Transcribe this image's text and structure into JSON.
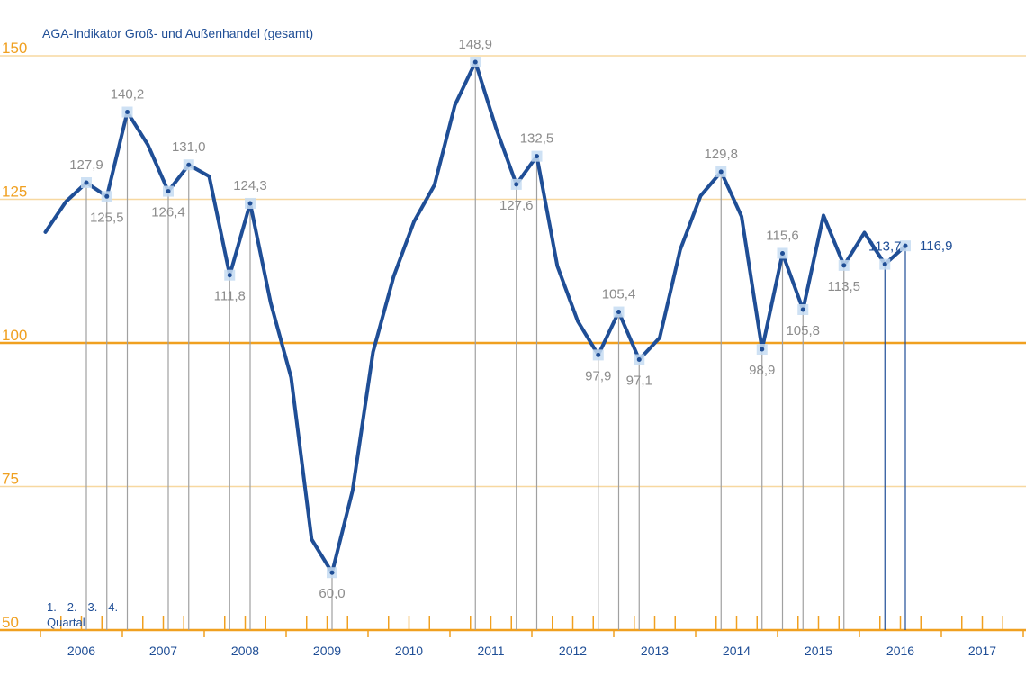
{
  "chart_data": {
    "type": "line",
    "title": "AGA-Indikator Groß- und Außenhandel (gesamt)",
    "xlabel": "",
    "ylabel": "",
    "ylim": [
      50,
      150
    ],
    "y_ticks": [
      50,
      75,
      100,
      125,
      150
    ],
    "y_tick_labels": [
      "50",
      "75",
      "100",
      "125",
      "150"
    ],
    "year_labels": [
      "2006",
      "2007",
      "2008",
      "2009",
      "2010",
      "2011",
      "2012",
      "2013",
      "2014",
      "2015",
      "2016",
      "2017"
    ],
    "quarter_labels": [
      "1.",
      "2.",
      "3.",
      "4."
    ],
    "quarter_caption": "Quartal",
    "reference_line": 100,
    "grid": true,
    "colors": {
      "line": "#1f4e96",
      "axis": "#f0a020",
      "grid": "#f7d8a0",
      "drop": "#a0a0a0",
      "marker": "#c6dcf2",
      "label": "#8c8c8c",
      "highlight": "#1f4e96"
    },
    "series": [
      {
        "x": [
          "2006 Q1",
          "2006 Q2",
          "2006 Q3",
          "2006 Q4",
          "2007 Q1",
          "2007 Q2",
          "2007 Q3",
          "2007 Q4",
          "2008 Q1",
          "2008 Q2",
          "2008 Q3",
          "2008 Q4",
          "2009 Q1",
          "2009 Q2",
          "2009 Q3",
          "2009 Q4",
          "2010 Q1",
          "2010 Q2",
          "2010 Q3",
          "2010 Q4",
          "2011 Q1",
          "2011 Q2",
          "2011 Q3",
          "2011 Q4",
          "2012 Q1",
          "2012 Q2",
          "2012 Q3",
          "2012 Q4",
          "2013 Q1",
          "2013 Q2",
          "2013 Q3",
          "2013 Q4",
          "2014 Q1",
          "2014 Q2",
          "2014 Q3",
          "2014 Q4",
          "2015 Q1",
          "2015 Q2",
          "2015 Q3",
          "2015 Q4",
          "2016 Q1",
          "2016 Q2",
          "2016 Q3"
        ],
        "values": [
          119.3,
          124.6,
          127.9,
          125.5,
          140.2,
          134.5,
          126.4,
          131.0,
          129.0,
          111.8,
          124.3,
          107.0,
          94.0,
          65.8,
          60.0,
          74.3,
          98.4,
          111.5,
          121.1,
          127.5,
          141.4,
          148.9,
          137.5,
          127.6,
          132.5,
          113.4,
          103.8,
          97.9,
          105.4,
          97.1,
          100.9,
          116.2,
          125.6,
          129.8,
          122.0,
          98.9,
          115.6,
          105.8,
          122.2,
          113.5,
          119.2,
          113.7,
          116.9
        ]
      }
    ],
    "labels": [
      {
        "i": 3,
        "text": "127,9",
        "pos": "above"
      },
      {
        "i": 4,
        "text": "125,5",
        "pos": "below"
      },
      {
        "i": 5,
        "text": "140,2",
        "pos": "above"
      },
      {
        "i": 7,
        "text": "126,4",
        "pos": "below"
      },
      {
        "i": 8,
        "text": "131,0",
        "pos": "above"
      },
      {
        "i": 10,
        "text": "111,8",
        "pos": "below"
      },
      {
        "i": 11,
        "text": "124,3",
        "pos": "above"
      },
      {
        "i": 15,
        "text": "60,0",
        "pos": "below"
      },
      {
        "i": 22,
        "text": "148,9",
        "pos": "above"
      },
      {
        "i": 24,
        "text": "127,6",
        "pos": "below"
      },
      {
        "i": 25,
        "text": "132,5",
        "pos": "above"
      },
      {
        "i": 28,
        "text": "97,9",
        "pos": "below"
      },
      {
        "i": 29,
        "text": "105,4",
        "pos": "above"
      },
      {
        "i": 30,
        "text": "97,1",
        "pos": "below"
      },
      {
        "i": 34,
        "text": "129,8",
        "pos": "above"
      },
      {
        "i": 36,
        "text": "98,9",
        "pos": "below"
      },
      {
        "i": 37,
        "text": "115,6",
        "pos": "above"
      },
      {
        "i": 38,
        "text": "105,8",
        "pos": "below"
      },
      {
        "i": 40,
        "text": "113,5",
        "pos": "below"
      },
      {
        "i": 42,
        "text": "113,7",
        "pos": "above",
        "highlight": true
      },
      {
        "i": 43,
        "text": "116,9",
        "pos": "right",
        "highlight": true
      }
    ]
  }
}
